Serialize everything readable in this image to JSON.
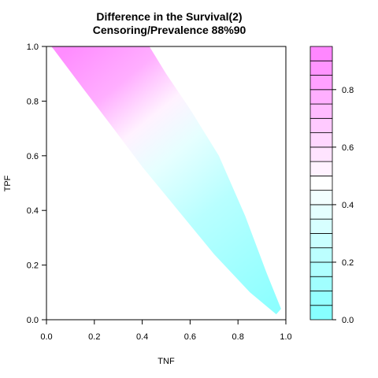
{
  "chart_data": {
    "type": "heatmap",
    "title": "Difference in the Survival(2)",
    "subtitle": "Censoring/Prevalence 88%90",
    "xlabel": "TNF",
    "ylabel": "TPF",
    "xlim": [
      0,
      1
    ],
    "ylim": [
      0,
      1
    ],
    "x_ticks": [
      "0.0",
      "0.2",
      "0.4",
      "0.6",
      "0.8",
      "1.0"
    ],
    "y_ticks": [
      "0.0",
      "0.2",
      "0.4",
      "0.6",
      "0.8",
      "1.0"
    ],
    "grid": false,
    "region": {
      "upper_edge": [
        [
          0.02,
          1.0
        ],
        [
          0.43,
          1.0
        ],
        [
          0.5,
          0.9
        ],
        [
          0.6,
          0.77
        ],
        [
          0.72,
          0.6
        ],
        [
          0.83,
          0.38
        ],
        [
          0.92,
          0.17
        ],
        [
          0.98,
          0.04
        ]
      ],
      "lower_edge": [
        [
          0.96,
          0.02
        ],
        [
          0.85,
          0.1
        ],
        [
          0.7,
          0.24
        ],
        [
          0.55,
          0.4
        ],
        [
          0.4,
          0.56
        ],
        [
          0.28,
          0.7
        ],
        [
          0.15,
          0.85
        ],
        [
          0.03,
          0.99
        ]
      ]
    },
    "color_scale": {
      "breaks": [
        0.0,
        0.05,
        0.1,
        0.15,
        0.2,
        0.25,
        0.3,
        0.35,
        0.4,
        0.45,
        0.5,
        0.55,
        0.6,
        0.65,
        0.7,
        0.75,
        0.8,
        0.85,
        0.9,
        0.95
      ],
      "ticks": [
        "0.0",
        "0.2",
        "0.4",
        "0.6",
        "0.8"
      ],
      "low_color": "#80ffff",
      "mid_color": "#ffffff",
      "high_color": "#ff80ff",
      "legend": "right"
    }
  }
}
